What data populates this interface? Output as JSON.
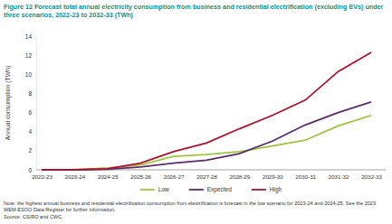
{
  "chart_data": {
    "type": "line",
    "title": "Figure 12 Forecast total annual electricity consumption from business and residential electrification (excluding EVs) under three scenarios, 2022-23 to 2032-33 (TWh)",
    "y_label": "Annual consumption (TWh)",
    "categories": [
      "2022-23",
      "2023-24",
      "2024-25",
      "2025-26",
      "2026-27",
      "2027-28",
      "2028-29",
      "2029-30",
      "2030-31",
      "2031-32",
      "2032-33"
    ],
    "series": [
      {
        "name": "Low",
        "color": "#9cc63b",
        "values": [
          0,
          0.02,
          0.2,
          0.5,
          1.4,
          1.6,
          1.9,
          2.5,
          3.1,
          4.6,
          5.7
        ]
      },
      {
        "name": "Expected",
        "color": "#5e2a6e",
        "values": [
          0,
          0,
          0.05,
          0.3,
          0.7,
          1.0,
          1.7,
          3.0,
          4.7,
          6.0,
          7.1
        ]
      },
      {
        "name": "High",
        "color": "#b0122e",
        "values": [
          0,
          0,
          0.1,
          0.7,
          1.9,
          2.8,
          4.3,
          5.7,
          7.3,
          10.3,
          12.3
        ]
      }
    ],
    "ylim": [
      0,
      14
    ],
    "yticks": [
      0,
      2,
      4,
      6,
      8,
      10,
      12,
      14
    ],
    "grid": false,
    "legend": "bottom",
    "annotations": [
      "Note: the highest annual business and residential electrification consumption from electrification is forecast in the low scenario for 2023-24 and 2024-25. See the 2023 WEM ESOO Data Register for further information.",
      "Source: CSIRO and CWC."
    ]
  }
}
